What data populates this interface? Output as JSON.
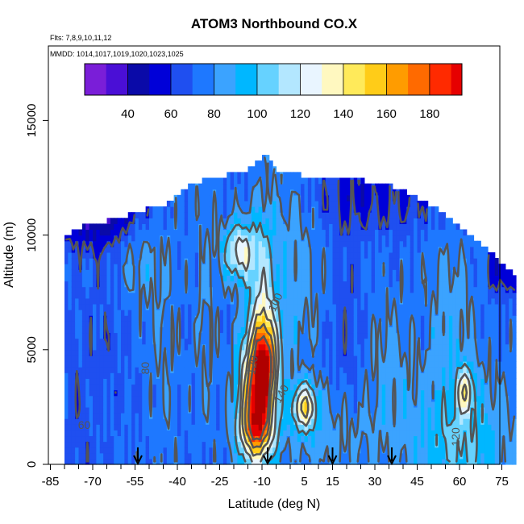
{
  "chart_data": {
    "type": "heatmap",
    "title": "ATOM3 Northbound CO.X",
    "flights_label": "Flts: 7,8,9,10,11,12",
    "mmdd_label": "MMDD: 1014,1017,1019,1020,1023,1025",
    "xlabel": "Latitude (deg N)",
    "ylabel": "Altitude (m)",
    "xlim": [
      -85,
      85
    ],
    "ylim": [
      0,
      17500
    ],
    "x_ticks": [
      -85,
      -70,
      -55,
      -40,
      -25,
      -10,
      5,
      15,
      30,
      45,
      60,
      75
    ],
    "y_ticks": [
      0,
      5000,
      10000,
      15000
    ],
    "colorbar": {
      "range": [
        20,
        195
      ],
      "ticks": [
        40,
        60,
        80,
        100,
        120,
        140,
        160,
        180
      ],
      "bin_width": 10,
      "colors": [
        "#7a1ed8",
        "#4a0fd6",
        "#0a0aa8",
        "#0000d8",
        "#1f4ff0",
        "#1e78ff",
        "#3ba3ff",
        "#00b7ff",
        "#66d2ff",
        "#b3e7ff",
        "#e9f5ff",
        "#fff8c0",
        "#ffea5a",
        "#ffcc18",
        "#ff9c00",
        "#ff6a00",
        "#ff2a00",
        "#e60000",
        "#b00000"
      ]
    },
    "contour_labels": [
      "60",
      "80",
      "100",
      "120",
      "120",
      "140"
    ],
    "arrow_latitudes": [
      -54,
      -8,
      15,
      36
    ],
    "field": {
      "lat_range": [
        -80,
        80
      ],
      "top_altitude": [
        [
          -80,
          9900
        ],
        [
          -75,
          10300
        ],
        [
          -70,
          10500
        ],
        [
          -62,
          10700
        ],
        [
          -55,
          11000
        ],
        [
          -45,
          11300
        ],
        [
          -35,
          12200
        ],
        [
          -25,
          12600
        ],
        [
          -17,
          12700
        ],
        [
          -12,
          13200
        ],
        [
          -8,
          13500
        ],
        [
          -5,
          12800
        ],
        [
          5,
          12600
        ],
        [
          20,
          12500
        ],
        [
          30,
          12300
        ],
        [
          40,
          12000
        ],
        [
          50,
          11300
        ],
        [
          60,
          10400
        ],
        [
          67,
          9700
        ],
        [
          75,
          8800
        ],
        [
          80,
          8200
        ]
      ],
      "background": 72,
      "features": [
        {
          "lat": -12,
          "alt": 3000,
          "sx": 4,
          "sy": 2000,
          "amp": 110
        },
        {
          "lat": -8,
          "alt": 4500,
          "sx": 3,
          "sy": 1400,
          "amp": 65
        },
        {
          "lat": -10,
          "alt": 7500,
          "sx": 3,
          "sy": 2500,
          "amp": 32
        },
        {
          "lat": -18,
          "alt": 9300,
          "sx": 4,
          "sy": 900,
          "amp": 55
        },
        {
          "lat": -12,
          "alt": 1500,
          "sx": 5,
          "sy": 800,
          "amp": 40
        },
        {
          "lat": 5,
          "alt": 2500,
          "sx": 3,
          "sy": 700,
          "amp": 65
        },
        {
          "lat": 0,
          "alt": 9000,
          "sx": 8,
          "sy": 3500,
          "amp": 15
        },
        {
          "lat": 15,
          "alt": 1200,
          "sx": 10,
          "sy": 1500,
          "amp": 15
        },
        {
          "lat": 60,
          "alt": 1000,
          "sx": 12,
          "sy": 2000,
          "amp": 30
        },
        {
          "lat": 62,
          "alt": 3200,
          "sx": 2,
          "sy": 700,
          "amp": 50
        },
        {
          "lat": 57,
          "alt": 6500,
          "sx": 6,
          "sy": 2500,
          "amp": 14
        },
        {
          "lat": 35,
          "alt": 4000,
          "sx": 6,
          "sy": 2500,
          "amp": 12
        },
        {
          "lat": -55,
          "alt": 9000,
          "sx": 5,
          "sy": 1500,
          "amp": 14
        },
        {
          "lat": -62,
          "alt": 11500,
          "sx": 8,
          "sy": 1200,
          "amp": -30
        },
        {
          "lat": -75,
          "alt": 10800,
          "sx": 8,
          "sy": 1000,
          "amp": -20
        },
        {
          "lat": 30,
          "alt": 11800,
          "sx": 20,
          "sy": 1200,
          "amp": -16
        },
        {
          "lat": -78,
          "alt": 2000,
          "sx": 6,
          "sy": 3000,
          "amp": -8
        },
        {
          "lat": 75,
          "alt": 8500,
          "sx": 4,
          "sy": 800,
          "amp": -22
        },
        {
          "lat": -65,
          "alt": 6000,
          "sx": 6,
          "sy": 3000,
          "amp": -7
        },
        {
          "lat": -45,
          "alt": 5500,
          "sx": 4,
          "sy": 4000,
          "amp": 8
        },
        {
          "lat": -30,
          "alt": 7000,
          "sx": 3,
          "sy": 4000,
          "amp": 9
        },
        {
          "lat": 20,
          "alt": 6000,
          "sx": 5,
          "sy": 4000,
          "amp": -8
        }
      ]
    }
  }
}
